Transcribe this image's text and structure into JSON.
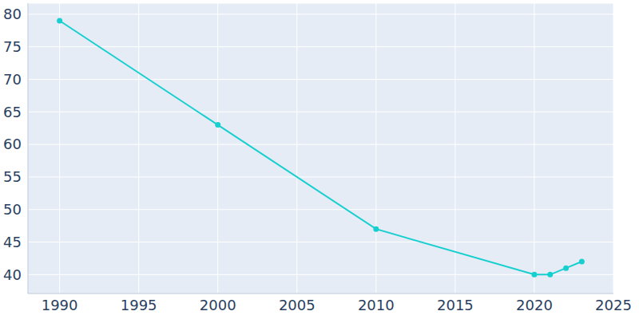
{
  "chart_data": {
    "type": "line",
    "x": [
      1990,
      2000,
      2010,
      2020,
      2021,
      2022,
      2023
    ],
    "values": [
      79,
      63,
      47,
      40,
      40,
      41,
      42
    ],
    "color": "#17cfcf",
    "marker": "circle",
    "xlim": [
      1988,
      2025
    ],
    "xticks": [
      1990,
      1995,
      2000,
      2005,
      2010,
      2015,
      2020,
      2025
    ],
    "ylim": [
      37.1,
      81.7
    ],
    "yticks": [
      40,
      45,
      50,
      55,
      60,
      65,
      70,
      75,
      80
    ],
    "grid": true
  }
}
